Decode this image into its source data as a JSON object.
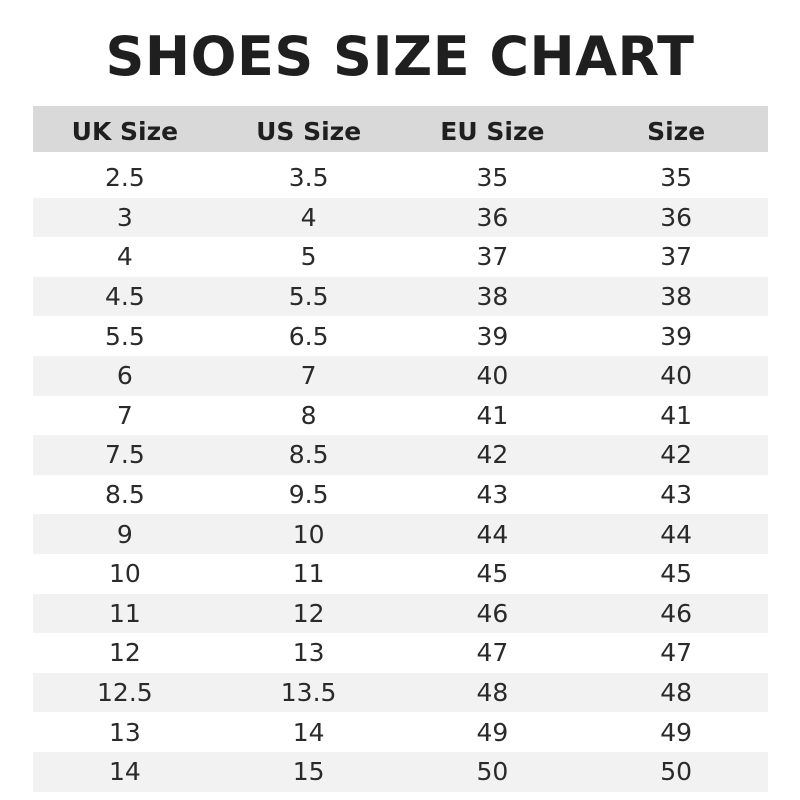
{
  "chart_data": {
    "type": "table",
    "title": "SHOES SIZE CHART",
    "columns": [
      "UK Size",
      "US Size",
      "EU Size",
      "Size"
    ],
    "rows": [
      [
        "2.5",
        "3.5",
        "35",
        "35"
      ],
      [
        "3",
        "4",
        "36",
        "36"
      ],
      [
        "4",
        "5",
        "37",
        "37"
      ],
      [
        "4.5",
        "5.5",
        "38",
        "38"
      ],
      [
        "5.5",
        "6.5",
        "39",
        "39"
      ],
      [
        "6",
        "7",
        "40",
        "40"
      ],
      [
        "7",
        "8",
        "41",
        "41"
      ],
      [
        "7.5",
        "8.5",
        "42",
        "42"
      ],
      [
        "8.5",
        "9.5",
        "43",
        "43"
      ],
      [
        "9",
        "10",
        "44",
        "44"
      ],
      [
        "10",
        "11",
        "45",
        "45"
      ],
      [
        "11",
        "12",
        "46",
        "46"
      ],
      [
        "12",
        "13",
        "47",
        "47"
      ],
      [
        "12.5",
        "13.5",
        "48",
        "48"
      ],
      [
        "13",
        "14",
        "49",
        "49"
      ],
      [
        "14",
        "15",
        "50",
        "50"
      ]
    ],
    "colors": {
      "header_bg": "#d9d9d9",
      "alt_row_bg": "#f2f2f2"
    }
  }
}
